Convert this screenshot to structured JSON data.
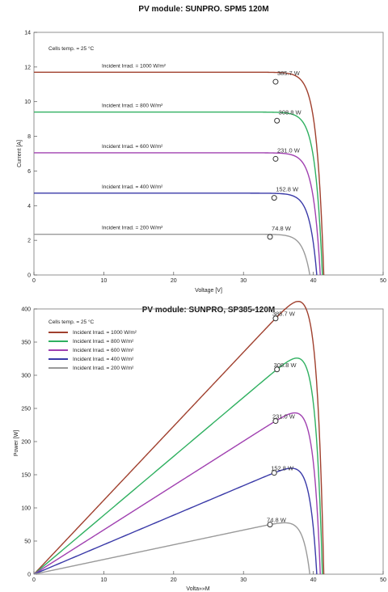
{
  "colors": {
    "s1000": "#a0402e",
    "s800": "#2fb060",
    "s600": "#a040b0",
    "s400": "#3a3aa8",
    "s200": "#9a9a9a",
    "axis": "#555555",
    "frame": "#777777"
  },
  "chart_data": [
    {
      "type": "line",
      "title": "PV module:  SUNPRO.  SPM5 120M",
      "xlabel": "Voltage [V]",
      "ylabel": "Current [A]",
      "xlim": [
        0,
        50
      ],
      "ylim": [
        0,
        14
      ],
      "xticks": [
        0,
        10,
        20,
        30,
        40,
        50
      ],
      "yticks": [
        0,
        2,
        4,
        6,
        8,
        10,
        12,
        14
      ],
      "grid": false,
      "note": "Cells temp. = 25 °C",
      "series": [
        {
          "name": "Incident Irrad. = 1000 W/m²",
          "color_key": "s1000",
          "isc": 11.7,
          "voc": 41.5,
          "mpp": [
            34.6,
            11.15
          ],
          "mpp_label": "385.7 W"
        },
        {
          "name": "Incident Irrad. = 800 W/m²",
          "color_key": "s800",
          "isc": 9.4,
          "voc": 41.3,
          "mpp": [
            34.8,
            8.9
          ],
          "mpp_label": "308.8 W"
        },
        {
          "name": "Incident Irrad. = 600 W/m²",
          "color_key": "s600",
          "isc": 7.05,
          "voc": 41.0,
          "mpp": [
            34.6,
            6.7
          ],
          "mpp_label": "231.0 W"
        },
        {
          "name": "Incident Irrad. = 400 W/m²",
          "color_key": "s400",
          "isc": 4.72,
          "voc": 40.5,
          "mpp": [
            34.4,
            4.45
          ],
          "mpp_label": "152.8 W"
        },
        {
          "name": "Incident Irrad. = 200 W/m²",
          "color_key": "s200",
          "isc": 2.35,
          "voc": 39.5,
          "mpp": [
            33.8,
            2.2
          ],
          "mpp_label": "74.8 W"
        }
      ]
    },
    {
      "type": "line",
      "title": "PV module:  SUNPRO,  SP385-120M",
      "xlabel": "Volta»»M",
      "ylabel": "Power [W]",
      "xlim": [
        0,
        50
      ],
      "ylim": [
        0,
        400
      ],
      "xticks": [
        0,
        10,
        20,
        30,
        40,
        50
      ],
      "yticks": [
        0,
        50,
        100,
        150,
        200,
        250,
        300,
        350,
        400
      ],
      "grid": false,
      "note": "Cells temp. = 25 °C",
      "legend": "top-left",
      "series": [
        {
          "name": "Incident Irrad. = 1000 W/m²",
          "color_key": "s1000",
          "isc": 11.7,
          "voc": 41.5,
          "mpp": [
            34.6,
            385.7
          ],
          "mpp_label": "385.7 W"
        },
        {
          "name": "Incident Irrad. = 800 W/m²",
          "color_key": "s800",
          "isc": 9.4,
          "voc": 41.3,
          "mpp": [
            34.8,
            308.8
          ],
          "mpp_label": "308.8 W"
        },
        {
          "name": "Incident Irrad. = 600 W/m²",
          "color_key": "s600",
          "isc": 7.05,
          "voc": 41.0,
          "mpp": [
            34.6,
            231.0
          ],
          "mpp_label": "231.0 W"
        },
        {
          "name": "Incident Irrad. = 400 W/m²",
          "color_key": "s400",
          "isc": 4.72,
          "voc": 40.5,
          "mpp": [
            34.4,
            152.8
          ],
          "mpp_label": "152.8 W"
        },
        {
          "name": "Incident Irrad. = 200 W/m²",
          "color_key": "s200",
          "isc": 2.35,
          "voc": 39.5,
          "mpp": [
            33.8,
            74.8
          ],
          "mpp_label": "74.8 W"
        }
      ]
    }
  ]
}
